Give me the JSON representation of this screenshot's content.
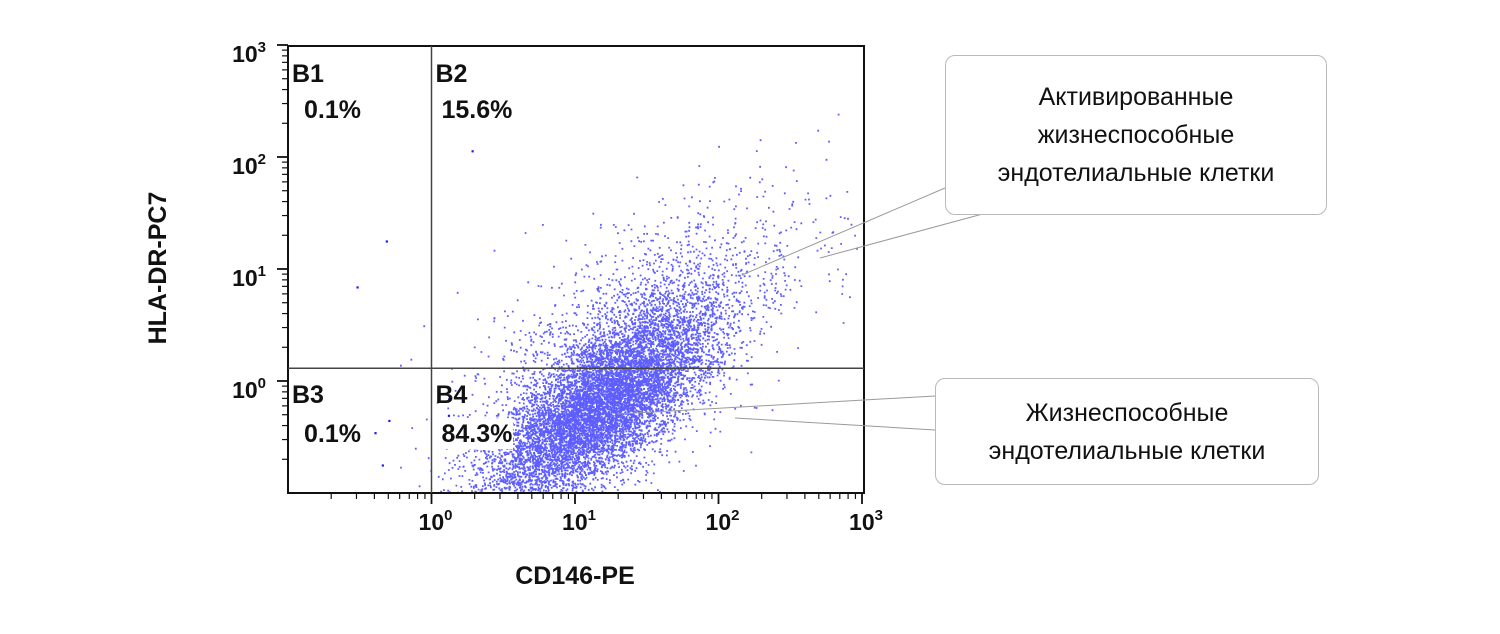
{
  "chart_data": {
    "type": "scatter",
    "xlabel": "CD146-PE",
    "ylabel": "HLA-DR-PC7",
    "x_scale": "log",
    "y_scale": "log",
    "xlim": [
      0.1,
      1000
    ],
    "ylim": [
      0.1,
      1000
    ],
    "x_ticks": [
      {
        "value": 1,
        "base": "10",
        "exp": "0"
      },
      {
        "value": 10,
        "base": "10",
        "exp": "1"
      },
      {
        "value": 100,
        "base": "10",
        "exp": "2"
      },
      {
        "value": 1000,
        "base": "10",
        "exp": "3"
      }
    ],
    "y_ticks": [
      {
        "value": 1,
        "base": "10",
        "exp": "0"
      },
      {
        "value": 10,
        "base": "10",
        "exp": "1"
      },
      {
        "value": 100,
        "base": "10",
        "exp": "2"
      },
      {
        "value": 1000,
        "base": "10",
        "exp": "3"
      }
    ],
    "gates": {
      "x": 1,
      "y": 1.3
    },
    "quadrants": [
      {
        "name": "B1",
        "value": "0.1%",
        "position": "top-left"
      },
      {
        "name": "B2",
        "value": "15.6%",
        "position": "top-right"
      },
      {
        "name": "B3",
        "value": "0.1%",
        "position": "bottom-left"
      },
      {
        "name": "B4",
        "value": "84.3%",
        "position": "bottom-right"
      }
    ],
    "grid": false,
    "point_color": "#1a1aff",
    "population": {
      "center_x": 15,
      "center_y": 0.6,
      "correlation": "positive"
    }
  },
  "annotations": [
    {
      "text": "Активированные\nжизнеспособные\nэндотелиальные клетки",
      "points_to": "B2"
    },
    {
      "text": "Жизнеспособные\nэндотелиальные клетки",
      "points_to": "B4"
    }
  ]
}
